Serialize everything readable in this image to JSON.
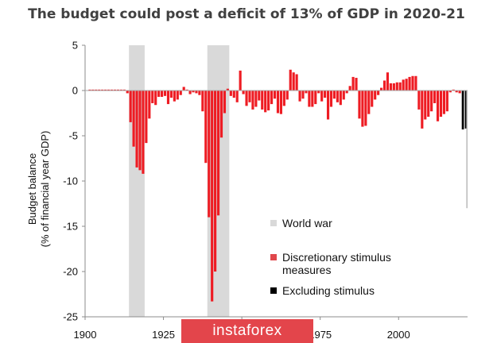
{
  "chart_data": {
    "type": "bar",
    "title": "The budget could post a deficit of 13% of GDP in 2020-21",
    "ylabel_lines": [
      "Budget balance",
      "(% of financial year GDP)"
    ],
    "xlabel": "",
    "xlim": [
      1900,
      2022
    ],
    "ylim": [
      -25,
      5
    ],
    "yticks": [
      5,
      0,
      -5,
      -10,
      -15,
      -20,
      -25
    ],
    "xticks": [
      1900,
      1925,
      1950,
      1975,
      2000
    ],
    "xtick_labels": [
      "1900",
      "1925",
      "",
      "1975",
      "2000"
    ],
    "grid": false,
    "legend_position": "bottom-right",
    "colors": {
      "deficit": "#ee1c23",
      "surplus": "#ee1c23",
      "world_war": "#d9d9d9",
      "excluding_stimulus": "#000000",
      "discretionary_marker": "#e0474c",
      "total_2021": "#bdbdbd"
    },
    "shaded_periods": [
      {
        "name": "World war",
        "from": 1914,
        "to": 1918
      },
      {
        "name": "World war",
        "from": 1939,
        "to": 1945
      }
    ],
    "series": [
      {
        "name": "Budget balance",
        "x": [
          1901,
          1902,
          1903,
          1904,
          1905,
          1906,
          1907,
          1908,
          1909,
          1910,
          1911,
          1912,
          1913,
          1914,
          1915,
          1916,
          1917,
          1918,
          1919,
          1920,
          1921,
          1922,
          1923,
          1924,
          1925,
          1926,
          1927,
          1928,
          1929,
          1930,
          1931,
          1932,
          1933,
          1934,
          1935,
          1936,
          1937,
          1938,
          1939,
          1940,
          1941,
          1942,
          1943,
          1944,
          1945,
          1946,
          1947,
          1948,
          1949,
          1950,
          1951,
          1952,
          1953,
          1954,
          1955,
          1956,
          1957,
          1958,
          1959,
          1960,
          1961,
          1962,
          1963,
          1964,
          1965,
          1966,
          1967,
          1968,
          1969,
          1970,
          1971,
          1972,
          1973,
          1974,
          1975,
          1976,
          1977,
          1978,
          1979,
          1980,
          1981,
          1982,
          1983,
          1984,
          1985,
          1986,
          1987,
          1988,
          1989,
          1990,
          1991,
          1992,
          1993,
          1994,
          1995,
          1996,
          1997,
          1998,
          1999,
          2000,
          2001,
          2002,
          2003,
          2004,
          2005,
          2006,
          2007,
          2008,
          2009,
          2010,
          2011,
          2012,
          2013,
          2014,
          2015,
          2016,
          2017,
          2018,
          2019
        ],
        "values": [
          0.1,
          0.1,
          0.1,
          0.1,
          0.1,
          0.1,
          0.1,
          0.1,
          0.1,
          0.1,
          0.1,
          0.1,
          -0.3,
          -3.5,
          -6.2,
          -8.5,
          -8.8,
          -9.2,
          -5.8,
          -3.1,
          -1.4,
          -1.6,
          -0.7,
          -0.7,
          -0.6,
          -1.5,
          -0.8,
          -1.2,
          -1,
          -0.5,
          0.4,
          0.1,
          -0.4,
          -0.2,
          -0.3,
          -0.5,
          -2.3,
          -8,
          -14,
          -23.3,
          -20,
          -13.8,
          -5.2,
          -2.5,
          0.2,
          -0.6,
          -0.8,
          -1.3,
          2.2,
          -0.4,
          -1.7,
          -1.3,
          -2.1,
          -1.8,
          -1.1,
          -2.1,
          -2.4,
          -2.2,
          -1.5,
          -0.9,
          -2.5,
          -2.6,
          -1.7,
          -1,
          2.3,
          2,
          1.8,
          -1.2,
          -0.9,
          -0.3,
          -1.8,
          -1.8,
          -1.5,
          -0.3,
          -1.2,
          -0.8,
          -3.2,
          -1.8,
          -0.9,
          -1.3,
          -1.6,
          -1,
          -0.3,
          0.5,
          1.5,
          1.4,
          -3.1,
          -4,
          -3.9,
          -2.6,
          -1.8,
          -1,
          -0.5,
          0.3,
          1.1,
          2,
          0.8,
          0.8,
          0.9,
          0.9,
          1.2,
          1.3,
          1.5,
          1.6,
          1.6,
          -2.1,
          -4.2,
          -3.2,
          -2.9,
          -2.3,
          -1.4,
          -3.4,
          -2.9,
          -2.6,
          -2.3,
          -0.2,
          0.1,
          -0.2,
          -0.3
        ]
      },
      {
        "name": "Excluding stimulus",
        "x": [
          2020,
          2021
        ],
        "values": [
          -4.3,
          -4.2
        ]
      },
      {
        "name": "Total 2020-21",
        "x": [
          2021.6
        ],
        "values": [
          -13
        ]
      }
    ],
    "legend": [
      {
        "label_lines": [
          "World war"
        ],
        "color_key": "world_war"
      },
      {
        "label_lines": [
          "Discretionary stimulus",
          "measures"
        ],
        "color_key": "discretionary_marker"
      },
      {
        "label_lines": [
          "Excluding stimulus"
        ],
        "color_key": "excluding_stimulus"
      }
    ]
  },
  "watermark": {
    "text": "instaforex"
  }
}
